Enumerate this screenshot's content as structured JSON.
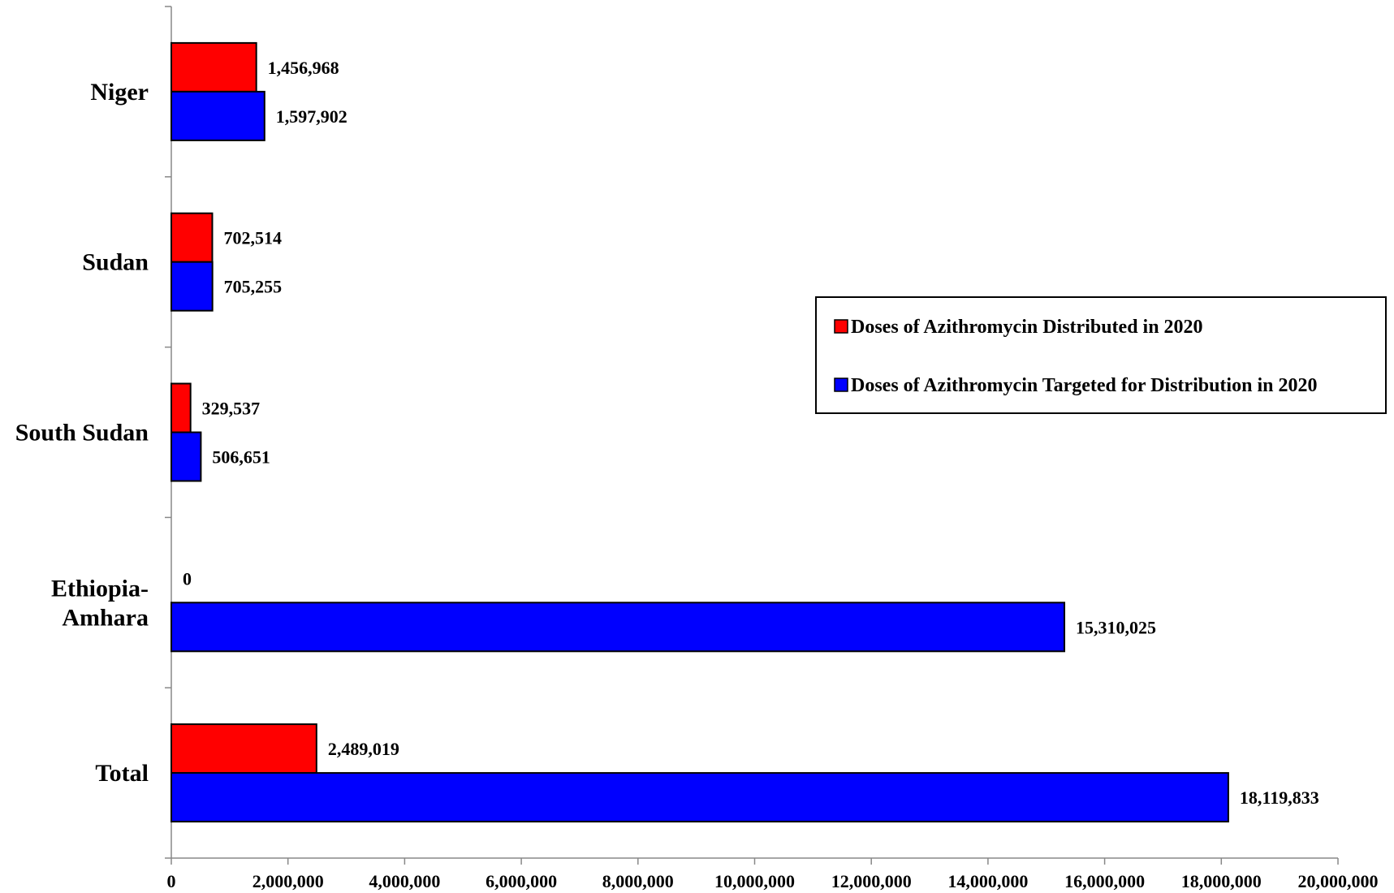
{
  "chart_data": {
    "type": "bar",
    "orientation": "horizontal",
    "categories": [
      "Niger",
      "Sudan",
      "South Sudan",
      "Ethiopia-Amhara",
      "Total"
    ],
    "category_lines": [
      [
        "Niger"
      ],
      [
        "Sudan"
      ],
      [
        "South Sudan"
      ],
      [
        "Ethiopia-",
        "Amhara"
      ],
      [
        "Total"
      ]
    ],
    "series": [
      {
        "name": "Doses of Azithromycin Distributed in 2020",
        "color": "#ff0000",
        "values": [
          1456968,
          702514,
          329537,
          0,
          2489019
        ],
        "labels": [
          "1,456,968",
          "702,514",
          "329,537",
          "0",
          "2,489,019"
        ]
      },
      {
        "name": "Doses of Azithromycin Targeted for Distribution in 2020",
        "color": "#0000ff",
        "values": [
          1597902,
          705255,
          506651,
          15310025,
          18119833
        ],
        "labels": [
          "1,597,902",
          "705,255",
          "506,651",
          "15,310,025",
          "18,119,833"
        ]
      }
    ],
    "x_ticks": [
      0,
      2000000,
      4000000,
      6000000,
      8000000,
      10000000,
      12000000,
      14000000,
      16000000,
      18000000,
      20000000
    ],
    "x_tick_labels": [
      "0",
      "2,000,000",
      "4,000,000",
      "6,000,000",
      "8,000,000",
      "10,000,000",
      "12,000,000",
      "14,000,000",
      "16,000,000",
      "18,000,000",
      "20,000,000"
    ],
    "xlim": [
      0,
      20000000
    ],
    "title": "",
    "xlabel": "",
    "ylabel": "",
    "grid": false,
    "legend_position": "right"
  }
}
